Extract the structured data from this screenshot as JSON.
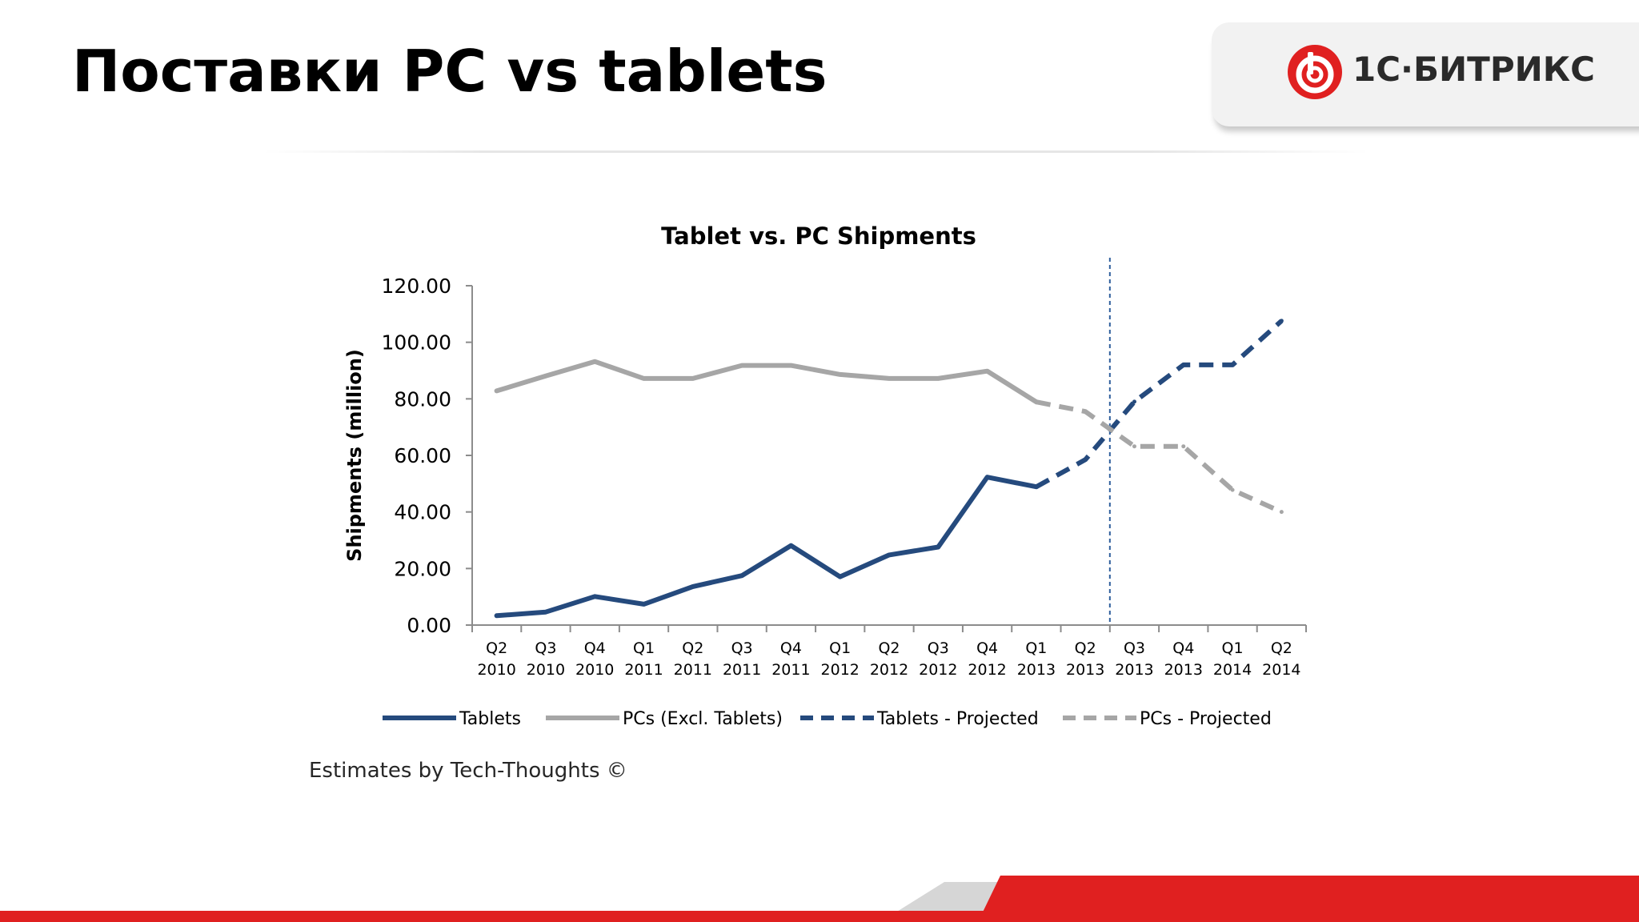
{
  "slide": {
    "title": "Поставки PC vs tablets",
    "logo_text": "1С·БИТРИКС",
    "credit": "Estimates by Tech-Thoughts ©"
  },
  "colors": {
    "tablets": "#254a7d",
    "pcs": "#a6a6a6",
    "divider": "#2f5f9c",
    "brand_red": "#e02020",
    "axis": "#8c8c8c",
    "text": "#000000"
  },
  "chart_data": {
    "type": "line",
    "title": "Tablet vs. PC Shipments",
    "xlabel": "",
    "ylabel": "Shipments (million)",
    "ylim": [
      0,
      120
    ],
    "y_ticks": [
      "0.00",
      "20.00",
      "40.00",
      "60.00",
      "80.00",
      "100.00",
      "120.00"
    ],
    "y_tick_values": [
      0,
      20,
      40,
      60,
      80,
      100,
      120
    ],
    "categories": [
      [
        "Q2",
        "2010"
      ],
      [
        "Q3",
        "2010"
      ],
      [
        "Q4",
        "2010"
      ],
      [
        "Q1",
        "2011"
      ],
      [
        "Q2",
        "2011"
      ],
      [
        "Q3",
        "2011"
      ],
      [
        "Q4",
        "2011"
      ],
      [
        "Q1",
        "2012"
      ],
      [
        "Q2",
        "2012"
      ],
      [
        "Q3",
        "2012"
      ],
      [
        "Q4",
        "2012"
      ],
      [
        "Q1",
        "2013"
      ],
      [
        "Q2",
        "2013"
      ],
      [
        "Q3",
        "2013"
      ],
      [
        "Q4",
        "2013"
      ],
      [
        "Q1",
        "2014"
      ],
      [
        "Q2",
        "2014"
      ]
    ],
    "series": [
      {
        "name": "Tablets",
        "style": "solid",
        "color": "#254a7d",
        "values": [
          3.3,
          4.6,
          10.1,
          7.4,
          13.6,
          17.5,
          28.1,
          17.1,
          24.8,
          27.6,
          52.3,
          48.9,
          null,
          null,
          null,
          null,
          null
        ]
      },
      {
        "name": "PCs (Excl. Tablets)",
        "style": "solid",
        "color": "#a6a6a6",
        "values": [
          82.8,
          88.1,
          93.2,
          87.2,
          87.2,
          91.8,
          91.8,
          88.6,
          87.2,
          87.2,
          89.8,
          78.9,
          null,
          null,
          null,
          null,
          null
        ]
      },
      {
        "name": "Tablets - Projected",
        "style": "dashed",
        "color": "#254a7d",
        "values": [
          null,
          null,
          null,
          null,
          null,
          null,
          null,
          null,
          null,
          null,
          null,
          48.9,
          58.5,
          79.0,
          92.0,
          92.0,
          107.6
        ]
      },
      {
        "name": "PCs - Projected",
        "style": "dashed",
        "color": "#a6a6a6",
        "values": [
          null,
          null,
          null,
          null,
          null,
          null,
          null,
          null,
          null,
          null,
          null,
          78.9,
          75.5,
          63.2,
          63.2,
          47.8,
          40.0
        ]
      }
    ],
    "projection_divider_after": "Q2 2013",
    "legend_position": "bottom",
    "grid": false
  }
}
